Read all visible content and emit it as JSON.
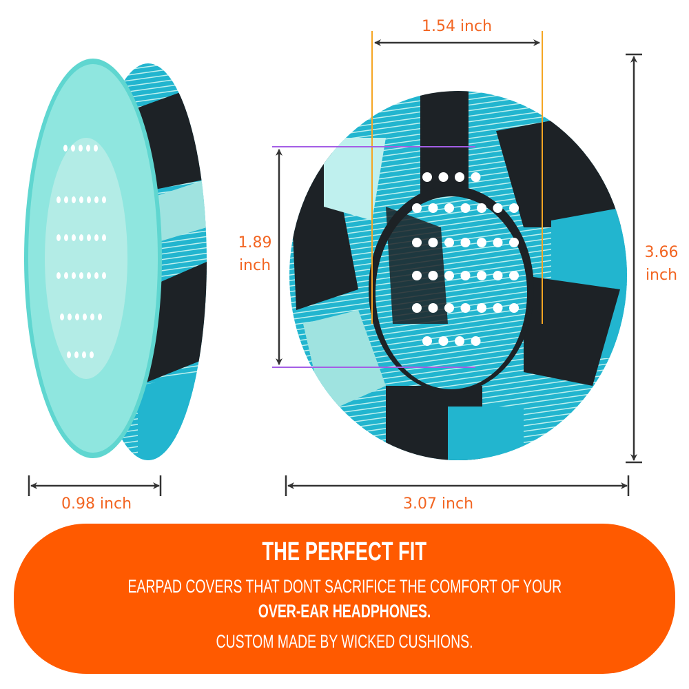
{
  "dimensions": {
    "inner_width": "1.54 inch",
    "inner_height_value": "1.89",
    "inner_height_unit": "inch",
    "outer_height_value": "3.66",
    "outer_height_unit": "inch",
    "outer_width": "3.07 inch",
    "depth": "0.98 inch"
  },
  "banner": {
    "title": "THE PERFECT FIT",
    "line1": "EARPAD COVERS THAT DONT SACRIFICE THE COMFORT OF YOUR",
    "line2": "OVER-EAR HEADPHONES.",
    "line3": "CUSTOM MADE BY WICKED CUSHIONS."
  },
  "colors": {
    "accent": "#ff5a00",
    "dimension_text": "#f26522",
    "guide_orange": "#f5a623",
    "guide_purple": "#a45ee5",
    "pad_teal": "#22b5cf",
    "pad_light": "#9fe3e0",
    "pad_dark": "#1d2226"
  }
}
